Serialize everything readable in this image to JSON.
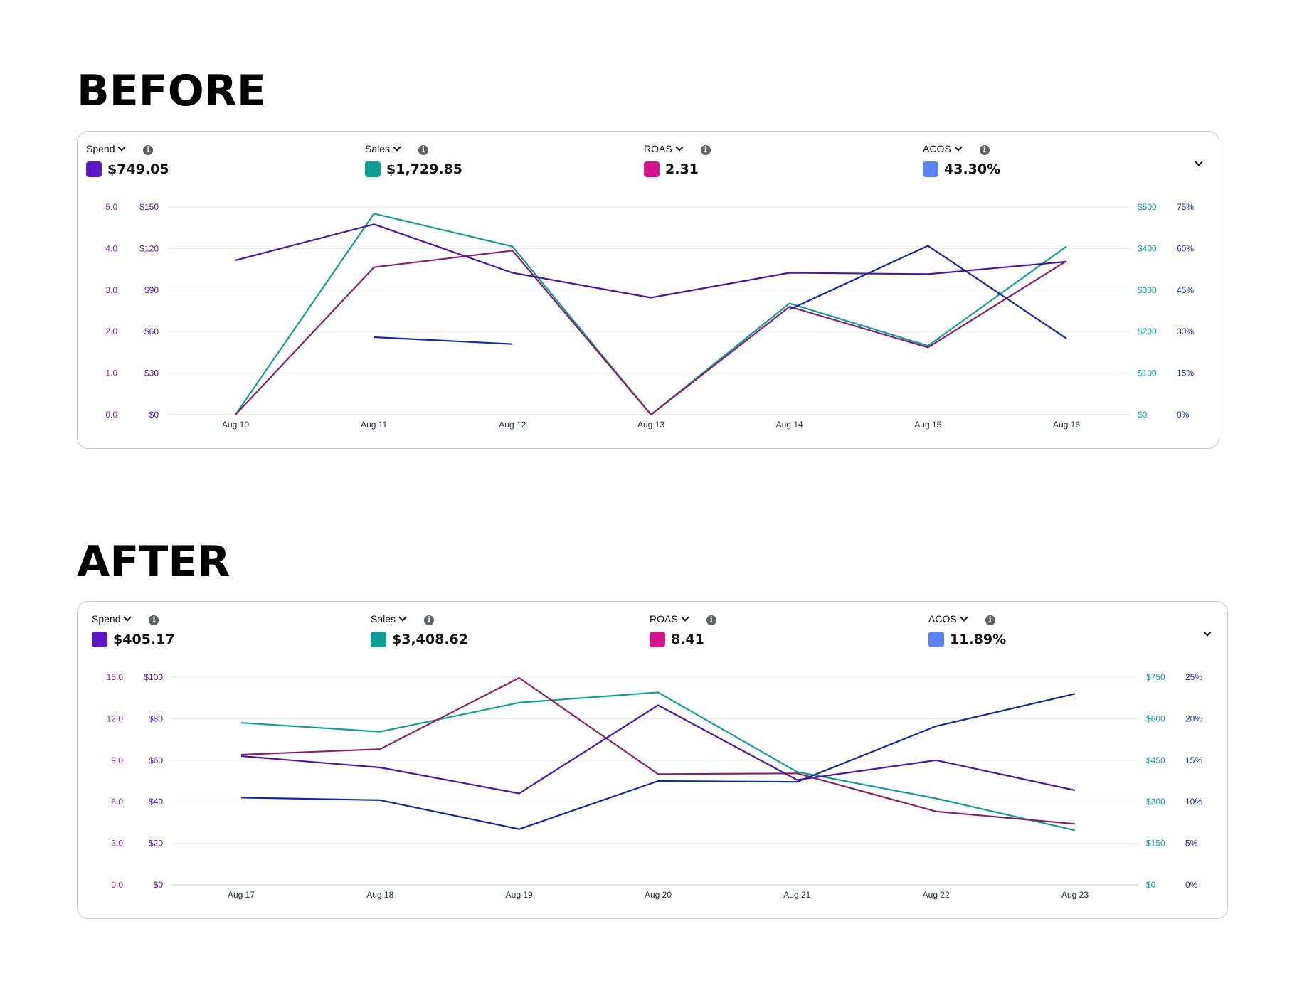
{
  "headings": {
    "before": "BEFORE",
    "after": "AFTER"
  },
  "colors": {
    "spend": "#5b18c9",
    "sales": "#0a9e95",
    "roas": "#d4148c",
    "acos": "#5b82f7",
    "spend_line": "#4a16a6",
    "sales_line": "#119e96",
    "roas_line": "#8a1f6a",
    "acos_line": "#1029a6",
    "roas_axis": "#8e1ea8",
    "spend_axis": "#4a16a6",
    "sales_axis": "#0a9e95",
    "acos_axis": "#1029a6",
    "grid": "#e8e8e8"
  },
  "before": {
    "metrics": [
      {
        "label": "Spend",
        "value": "$749.05",
        "swatch": "#5b18c9"
      },
      {
        "label": "Sales",
        "value": "$1,729.85",
        "swatch": "#0a9e95"
      },
      {
        "label": "ROAS",
        "value": "2.31",
        "swatch": "#d4148c"
      },
      {
        "label": "ACOS",
        "value": "43.30%",
        "swatch": "#5b82f7"
      }
    ]
  },
  "after": {
    "metrics": [
      {
        "label": "Spend",
        "value": "$405.17",
        "swatch": "#5b18c9"
      },
      {
        "label": "Sales",
        "value": "$3,408.62",
        "swatch": "#0a9e95"
      },
      {
        "label": "ROAS",
        "value": "8.41",
        "swatch": "#d4148c"
      },
      {
        "label": "ACOS",
        "value": "11.89%",
        "swatch": "#5b82f7"
      }
    ]
  },
  "chart_data": [
    {
      "type": "line",
      "title": "BEFORE",
      "categories": [
        "Aug 10",
        "Aug 11",
        "Aug 12",
        "Aug 13",
        "Aug 14",
        "Aug 15",
        "Aug 16"
      ],
      "axes": {
        "roas": {
          "ticks": [
            "0.0",
            "1.0",
            "2.0",
            "3.0",
            "4.0",
            "5.0"
          ],
          "ylim": [
            0,
            5
          ]
        },
        "spend": {
          "ticks": [
            "$0",
            "$30",
            "$60",
            "$90",
            "$120",
            "$150"
          ],
          "ylim": [
            0,
            150
          ]
        },
        "sales": {
          "ticks": [
            "$0",
            "$100",
            "$200",
            "$300",
            "$400",
            "$500"
          ],
          "ylim": [
            0,
            500
          ]
        },
        "acos": {
          "ticks": [
            "0%",
            "15%",
            "30%",
            "45%",
            "60%",
            "75%"
          ],
          "ylim": [
            0,
            75
          ]
        }
      },
      "series": [
        {
          "name": "Spend",
          "axis": "spend",
          "values": [
            111.5,
            137.5,
            102.5,
            84.5,
            102.5,
            101.5,
            110.5
          ]
        },
        {
          "name": "Sales",
          "axis": "sales",
          "values": [
            0,
            484,
            405,
            0,
            268,
            166,
            405
          ]
        },
        {
          "name": "ROAS",
          "axis": "roas",
          "values": [
            0,
            3.55,
            3.95,
            0,
            2.6,
            1.62,
            3.7
          ]
        },
        {
          "name": "ACOS",
          "axis": "acos",
          "values": [
            null,
            28.0,
            25.5,
            null,
            38.0,
            61.0,
            27.5
          ]
        }
      ]
    },
    {
      "type": "line",
      "title": "AFTER",
      "categories": [
        "Aug 17",
        "Aug 18",
        "Aug 19",
        "Aug 20",
        "Aug 21",
        "Aug 22",
        "Aug 23"
      ],
      "axes": {
        "roas": {
          "ticks": [
            "0.0",
            "3.0",
            "6.0",
            "9.0",
            "12.0",
            "15.0"
          ],
          "ylim": [
            0,
            15
          ]
        },
        "spend": {
          "ticks": [
            "$0",
            "$20",
            "$40",
            "$60",
            "$80",
            "$100"
          ],
          "ylim": [
            0,
            100
          ]
        },
        "sales": {
          "ticks": [
            "$0",
            "$150",
            "$300",
            "$450",
            "$600",
            "$750"
          ],
          "ylim": [
            0,
            750
          ]
        },
        "acos": {
          "ticks": [
            "0%",
            "5%",
            "10%",
            "15%",
            "20%",
            "25%"
          ],
          "ylim": [
            0,
            25
          ]
        }
      },
      "series": [
        {
          "name": "Spend",
          "axis": "spend",
          "values": [
            62,
            56.5,
            44,
            86.5,
            50.5,
            60,
            45.5
          ]
        },
        {
          "name": "Sales",
          "axis": "sales",
          "values": [
            585,
            553,
            658,
            695,
            408,
            312,
            197
          ]
        },
        {
          "name": "ROAS",
          "axis": "roas",
          "values": [
            9.4,
            9.8,
            14.95,
            8.0,
            8.05,
            5.3,
            4.4
          ]
        },
        {
          "name": "ACOS",
          "axis": "acos",
          "values": [
            10.5,
            10.2,
            6.7,
            12.5,
            12.4,
            19.1,
            23.0
          ]
        }
      ]
    }
  ]
}
